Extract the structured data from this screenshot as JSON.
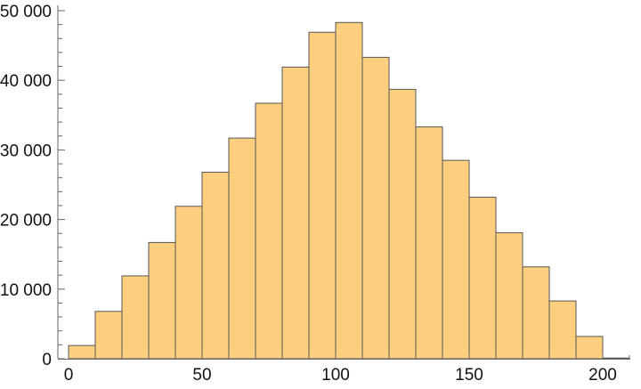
{
  "chart_data": {
    "type": "bar",
    "subtype": "histogram",
    "bin_width": 10,
    "bin_starts": [
      0,
      10,
      20,
      30,
      40,
      50,
      60,
      70,
      80,
      90,
      100,
      110,
      120,
      130,
      140,
      150,
      160,
      170,
      180,
      190,
      200
    ],
    "values": [
      1900,
      6800,
      11900,
      16700,
      21900,
      26800,
      31700,
      36700,
      41900,
      46900,
      48300,
      43300,
      38700,
      33300,
      28500,
      23200,
      18100,
      13200,
      8300,
      3200,
      100
    ],
    "title": "",
    "xlabel": "",
    "ylabel": "",
    "xlim": [
      -4,
      210
    ],
    "ylim": [
      0,
      50000
    ],
    "x_ticks": [
      "0",
      "50",
      "100",
      "150",
      "200"
    ],
    "y_ticks": [
      "0",
      "10 000",
      "20 000",
      "30 000",
      "40 000",
      "50 000"
    ],
    "grid": false,
    "bar_color": "#fdcf7f",
    "edge_color": "#555555"
  }
}
